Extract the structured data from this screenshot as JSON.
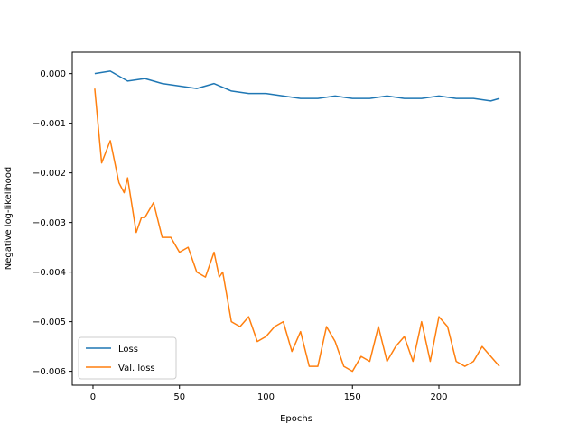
{
  "chart_data": {
    "type": "line",
    "xlabel": "Epochs",
    "ylabel": "Negative log-likelihood",
    "xlim": [
      -12,
      247
    ],
    "ylim": [
      -0.00628,
      0.00043
    ],
    "xticks": [
      0,
      50,
      100,
      150,
      200
    ],
    "yticks": [
      0.0,
      -0.001,
      -0.002,
      -0.003,
      -0.004,
      -0.005,
      -0.006
    ],
    "xtick_labels": [
      "0",
      "50",
      "100",
      "150",
      "200"
    ],
    "ytick_labels": [
      "0.000",
      "−0.001",
      "−0.002",
      "−0.003",
      "−0.004",
      "−0.005",
      "−0.006"
    ],
    "legend_position": "lower-left",
    "grid": false,
    "series": [
      {
        "name": "Loss",
        "color": "#1f77b4",
        "x": [
          1,
          10,
          20,
          30,
          40,
          50,
          60,
          70,
          80,
          90,
          100,
          110,
          120,
          130,
          140,
          150,
          160,
          170,
          180,
          190,
          200,
          210,
          220,
          230,
          235
        ],
        "values": [
          0.0,
          5e-05,
          -0.00015,
          -0.0001,
          -0.0002,
          -0.00025,
          -0.0003,
          -0.0002,
          -0.00035,
          -0.0004,
          -0.0004,
          -0.00045,
          -0.0005,
          -0.0005,
          -0.00045,
          -0.0005,
          -0.0005,
          -0.00045,
          -0.0005,
          -0.0005,
          -0.00045,
          -0.0005,
          -0.0005,
          -0.00055,
          -0.0005
        ]
      },
      {
        "name": "Val. loss",
        "color": "#ff7f0e",
        "x": [
          1,
          5,
          10,
          15,
          18,
          20,
          25,
          28,
          30,
          35,
          40,
          45,
          50,
          55,
          60,
          65,
          70,
          73,
          75,
          80,
          85,
          90,
          95,
          100,
          105,
          110,
          115,
          120,
          125,
          130,
          135,
          140,
          145,
          150,
          155,
          160,
          165,
          170,
          175,
          180,
          185,
          190,
          195,
          200,
          205,
          210,
          215,
          220,
          225,
          230,
          235
        ],
        "values": [
          -0.0003,
          -0.0018,
          -0.00135,
          -0.0022,
          -0.0024,
          -0.0021,
          -0.0032,
          -0.0029,
          -0.0029,
          -0.0026,
          -0.0033,
          -0.0033,
          -0.0036,
          -0.0035,
          -0.004,
          -0.0041,
          -0.0036,
          -0.0041,
          -0.004,
          -0.005,
          -0.0051,
          -0.0049,
          -0.0054,
          -0.0053,
          -0.0051,
          -0.005,
          -0.0056,
          -0.0052,
          -0.0059,
          -0.0059,
          -0.0051,
          -0.0054,
          -0.0059,
          -0.006,
          -0.0057,
          -0.0058,
          -0.0051,
          -0.0058,
          -0.0055,
          -0.0053,
          -0.0058,
          -0.005,
          -0.0058,
          -0.0049,
          -0.0051,
          -0.0058,
          -0.0059,
          -0.0058,
          -0.0055,
          -0.0057,
          -0.0059
        ]
      }
    ]
  }
}
